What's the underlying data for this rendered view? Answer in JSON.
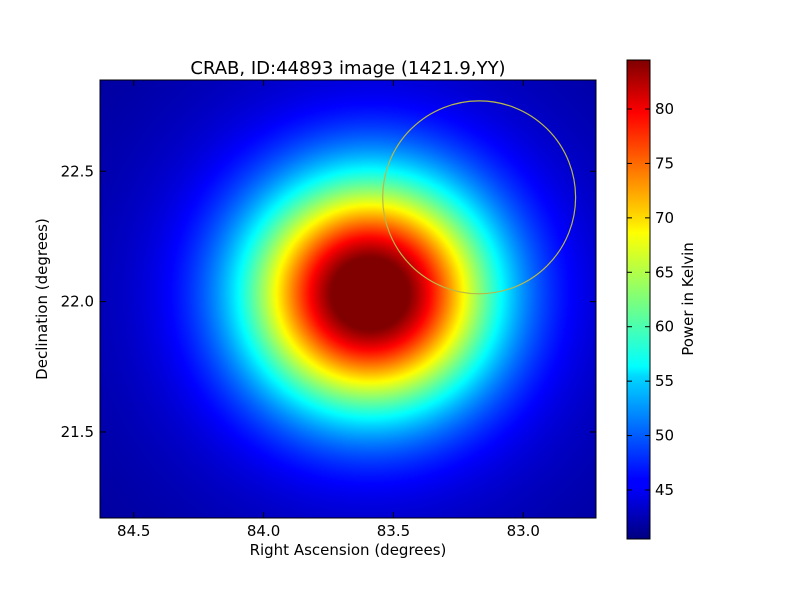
{
  "chart_data": {
    "type": "heatmap",
    "title": "CRAB, ID:44893 image (1421.9,YY)",
    "xlabel": "Right Ascension (degrees)",
    "ylabel": "Declination (degrees)",
    "xlim": [
      84.63,
      82.72
    ],
    "ylim": [
      21.17,
      22.85
    ],
    "x_ticks": [
      84.5,
      84.0,
      83.5,
      83.0
    ],
    "x_tick_labels": [
      "84.5",
      "84.0",
      "83.5",
      "83.0"
    ],
    "y_ticks": [
      21.5,
      22.0,
      22.5
    ],
    "y_tick_labels": [
      "21.5",
      "22.0",
      "22.5"
    ],
    "colormap": "jet",
    "colorbar": {
      "label": "Power in Kelvin",
      "range": [
        40.5,
        84.5
      ],
      "ticks": [
        45,
        50,
        55,
        60,
        65,
        70,
        75,
        80
      ],
      "tick_labels": [
        "45",
        "50",
        "55",
        "60",
        "65",
        "70",
        "75",
        "80"
      ]
    },
    "source": {
      "center_ra": 83.59,
      "center_dec": 22.03,
      "peak_kelvin": 84.5,
      "background_kelvin": 41.0
    },
    "overlay_circle": {
      "center_ra": 83.17,
      "center_dec": 22.4,
      "radius_deg": 0.37,
      "color": "#b8b84a"
    }
  }
}
